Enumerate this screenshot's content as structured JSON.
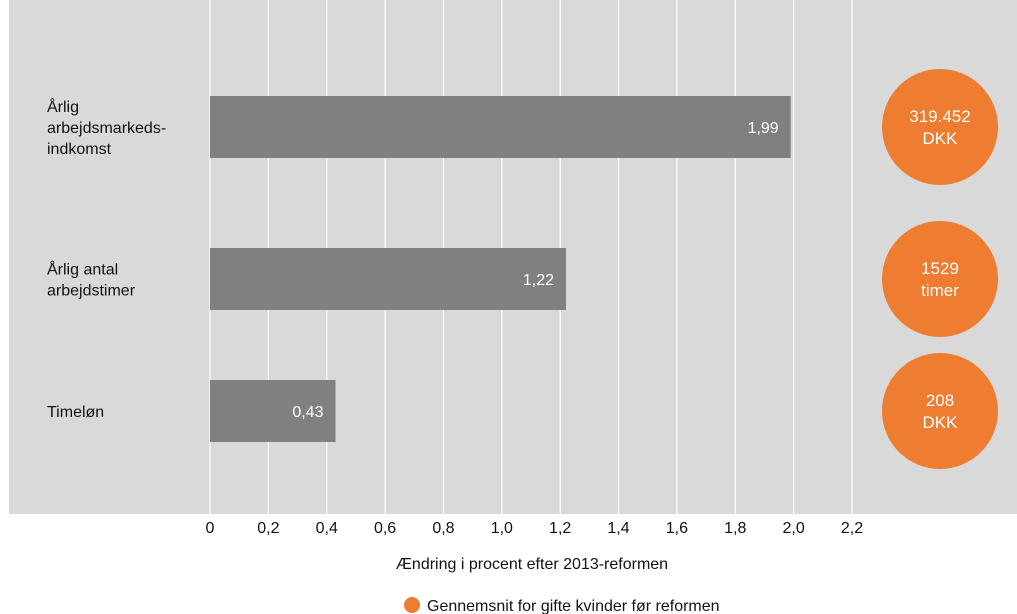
{
  "chart_data": {
    "type": "bar",
    "orientation": "horizontal",
    "categories": [
      [
        "Årlig",
        "arbejdsmarkeds-",
        "indkomst"
      ],
      [
        "Årlig antal",
        "arbejdstimer"
      ],
      [
        "Timeløn"
      ]
    ],
    "values": [
      1.99,
      1.22,
      0.43
    ],
    "value_labels": [
      "1,99",
      "1,22",
      "0,43"
    ],
    "xlim": [
      0,
      2.2
    ],
    "x_ticks": [
      0,
      0.2,
      0.4,
      0.6,
      0.8,
      1.0,
      1.2,
      1.4,
      1.6,
      1.8,
      2.0,
      2.2
    ],
    "x_tick_labels": [
      "0",
      "0,2",
      "0,4",
      "0,6",
      "0,8",
      "1,0",
      "1,2",
      "1,4",
      "1,6",
      "1,8",
      "2,0",
      "2,2"
    ],
    "xlabel": "Ændring i procent efter 2013-reformen",
    "grid": true,
    "bar_color": "#808080",
    "background_color": "#d9d9d9",
    "baseline_averages": [
      [
        "319.452",
        "DKK"
      ],
      [
        "1529",
        "timer"
      ],
      [
        "208",
        "DKK"
      ]
    ],
    "averages_color": "#ee7d31",
    "legend": [
      {
        "label": "Gennemsnit for gifte kvinder før reformen",
        "color": "#ee7d31",
        "marker": "circle"
      }
    ],
    "legend_position": "bottom-center"
  }
}
